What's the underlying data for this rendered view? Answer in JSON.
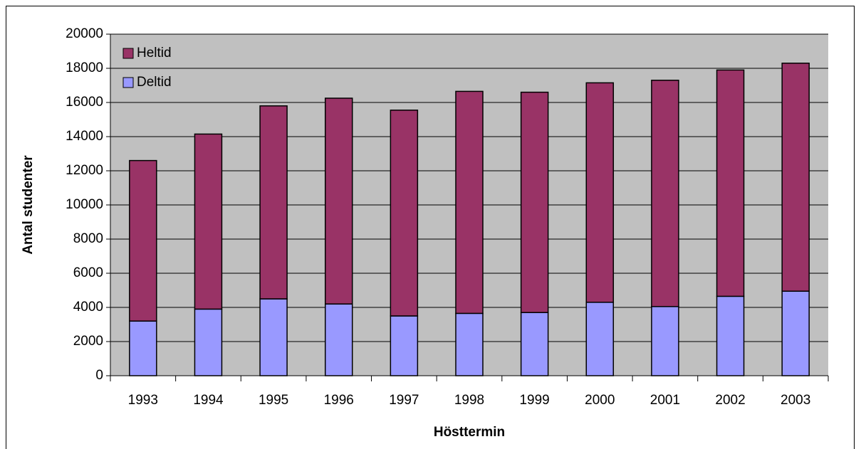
{
  "chart_data": {
    "type": "stacked_bar",
    "x_label": "Hösttermin",
    "y_label": "Antal studenter",
    "categories": [
      "1993",
      "1994",
      "1995",
      "1996",
      "1997",
      "1998",
      "1999",
      "2000",
      "2001",
      "2002",
      "2003"
    ],
    "series": [
      {
        "name": "Deltid",
        "color": "#9999ff",
        "values": [
          3200,
          3900,
          4500,
          4200,
          3500,
          3650,
          3700,
          4300,
          4050,
          4650,
          4950
        ]
      },
      {
        "name": "Heltid",
        "color": "#993366",
        "values": [
          9400,
          10250,
          11300,
          12050,
          12050,
          13000,
          12900,
          12850,
          13250,
          13250,
          13350
        ]
      }
    ],
    "ylim": [
      0,
      20000
    ],
    "yticks": [
      0,
      2000,
      4000,
      6000,
      8000,
      10000,
      12000,
      14000,
      16000,
      18000,
      20000
    ],
    "grid": true,
    "legend": "top-left",
    "plot_background": "#c0c0c0"
  }
}
